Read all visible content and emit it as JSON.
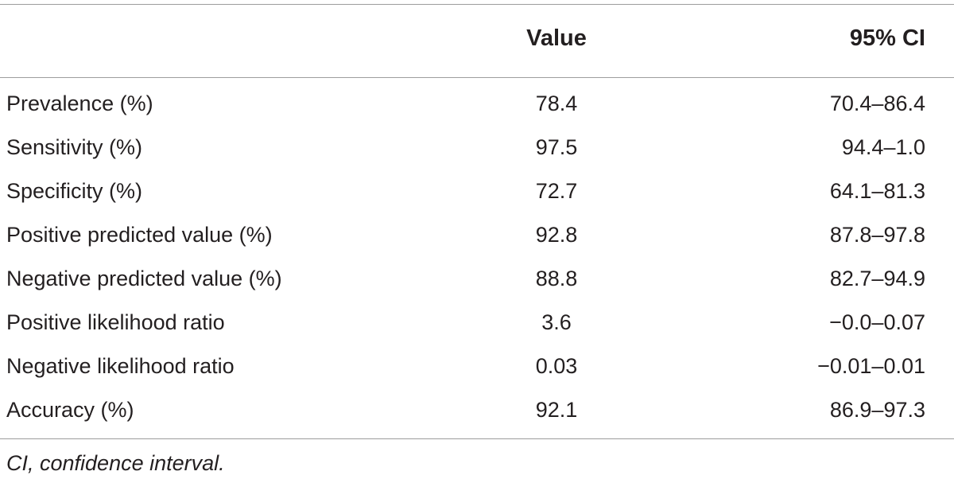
{
  "table": {
    "headers": {
      "label": "",
      "value": "Value",
      "ci": "95% CI"
    },
    "rows": [
      {
        "label": "Prevalence (%)",
        "value": "78.4",
        "ci": "70.4–86.4"
      },
      {
        "label": "Sensitivity (%)",
        "value": "97.5",
        "ci": "94.4–1.0"
      },
      {
        "label": "Specificity (%)",
        "value": "72.7",
        "ci": "64.1–81.3"
      },
      {
        "label": "Positive predicted value (%)",
        "value": "92.8",
        "ci": "87.8–97.8"
      },
      {
        "label": "Negative predicted value (%)",
        "value": "88.8",
        "ci": "82.7–94.9"
      },
      {
        "label": "Positive likelihood ratio",
        "value": "3.6",
        "ci": "−0.0–0.07"
      },
      {
        "label": "Negative likelihood ratio",
        "value": "0.03",
        "ci": "−0.01–0.01"
      },
      {
        "label": "Accuracy (%)",
        "value": "92.1",
        "ci": "86.9–97.3"
      }
    ],
    "footnote": "CI, confidence interval."
  }
}
